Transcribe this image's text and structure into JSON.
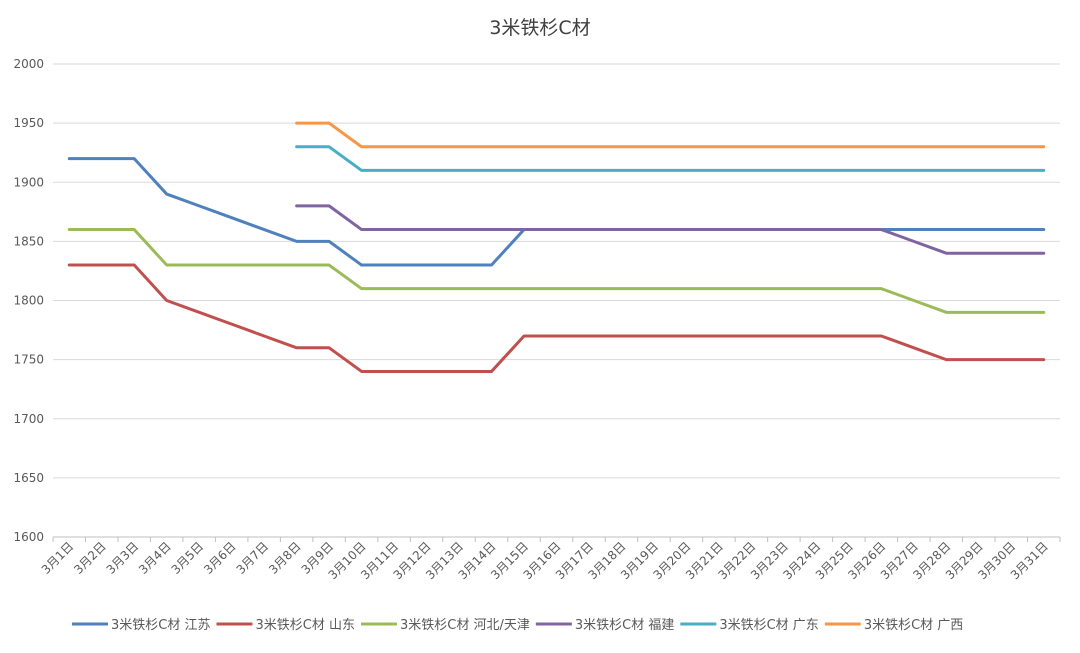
{
  "chart_data": {
    "type": "line",
    "title": "3米铁杉C材",
    "xlabel": "",
    "ylabel": "",
    "ylim": [
      1600,
      2000
    ],
    "yticks": [
      1600,
      1650,
      1700,
      1750,
      1800,
      1850,
      1900,
      1950,
      2000
    ],
    "grid": true,
    "legend_position": "bottom",
    "categories": [
      "3月1日",
      "3月2日",
      "3月3日",
      "3月4日",
      "3月5日",
      "3月6日",
      "3月7日",
      "3月8日",
      "3月9日",
      "3月10日",
      "3月11日",
      "3月12日",
      "3月13日",
      "3月14日",
      "3月15日",
      "3月16日",
      "3月17日",
      "3月18日",
      "3月19日",
      "3月20日",
      "3月21日",
      "3月22日",
      "3月23日",
      "3月24日",
      "3月25日",
      "3月26日",
      "3月27日",
      "3月28日",
      "3月29日",
      "3月30日",
      "3月31日"
    ],
    "series": [
      {
        "name": "3米铁杉C材 江苏",
        "color": "#4F81BD",
        "values": [
          1920,
          1920,
          1920,
          1890,
          1880,
          1870,
          1860,
          1850,
          1850,
          1830,
          1830,
          1830,
          1830,
          1830,
          1860,
          1860,
          1860,
          1860,
          1860,
          1860,
          1860,
          1860,
          1860,
          1860,
          1860,
          1860,
          1860,
          1860,
          1860,
          1860,
          1860
        ]
      },
      {
        "name": "3米铁杉C材 山东",
        "color": "#C0504D",
        "values": [
          1830,
          1830,
          1830,
          1800,
          1790,
          1780,
          1770,
          1760,
          1760,
          1740,
          1740,
          1740,
          1740,
          1740,
          1770,
          1770,
          1770,
          1770,
          1770,
          1770,
          1770,
          1770,
          1770,
          1770,
          1770,
          1770,
          1760,
          1750,
          1750,
          1750,
          1750
        ]
      },
      {
        "name": "3米铁杉C材 河北/天津",
        "color": "#9BBB59",
        "values": [
          1860,
          1860,
          1860,
          1830,
          1830,
          1830,
          1830,
          1830,
          1830,
          1810,
          1810,
          1810,
          1810,
          1810,
          1810,
          1810,
          1810,
          1810,
          1810,
          1810,
          1810,
          1810,
          1810,
          1810,
          1810,
          1810,
          1800,
          1790,
          1790,
          1790,
          1790
        ]
      },
      {
        "name": "3米铁杉C材 福建",
        "color": "#8064A2",
        "values": [
          null,
          null,
          null,
          null,
          null,
          null,
          null,
          1880,
          1880,
          1860,
          1860,
          1860,
          1860,
          1860,
          1860,
          1860,
          1860,
          1860,
          1860,
          1860,
          1860,
          1860,
          1860,
          1860,
          1860,
          1860,
          1850,
          1840,
          1840,
          1840,
          1840
        ]
      },
      {
        "name": "3米铁杉C材 广东",
        "color": "#4BACC6",
        "values": [
          null,
          null,
          null,
          null,
          null,
          null,
          null,
          1930,
          1930,
          1910,
          1910,
          1910,
          1910,
          1910,
          1910,
          1910,
          1910,
          1910,
          1910,
          1910,
          1910,
          1910,
          1910,
          1910,
          1910,
          1910,
          1910,
          1910,
          1910,
          1910,
          1910
        ]
      },
      {
        "name": "3米铁杉C材 广西",
        "color": "#F79646",
        "values": [
          null,
          null,
          null,
          null,
          null,
          null,
          null,
          1950,
          1950,
          1930,
          1930,
          1930,
          1930,
          1930,
          1930,
          1930,
          1930,
          1930,
          1930,
          1930,
          1930,
          1930,
          1930,
          1930,
          1930,
          1930,
          1930,
          1930,
          1930,
          1930,
          1930
        ]
      }
    ]
  }
}
